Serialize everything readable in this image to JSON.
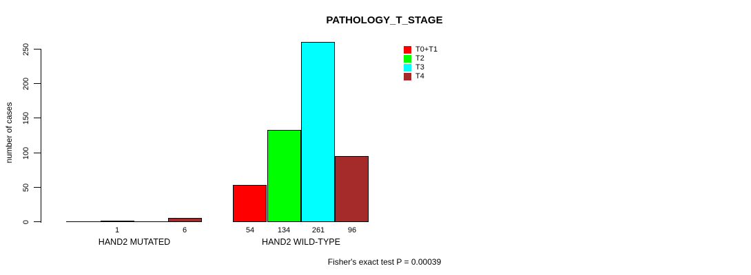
{
  "page": {
    "background": "#FFFFFF",
    "text_color": "#000000",
    "axis_color": "#000000"
  },
  "chart_data": {
    "type": "bar",
    "title": "PATHOLOGY_T_STAGE",
    "xlabel": "",
    "ylabel": "number of cases",
    "categories": [
      "HAND2 MUTATED",
      "HAND2 WILD-TYPE"
    ],
    "series": [
      {
        "name": "T0+T1",
        "color": "#FF0000",
        "values": [
          0,
          54
        ]
      },
      {
        "name": "T2",
        "color": "#00FF00",
        "values": [
          1,
          134
        ]
      },
      {
        "name": "T3",
        "color": "#00FFFF",
        "values": [
          0,
          261
        ]
      },
      {
        "name": "T4",
        "color": "#A52A2A",
        "values": [
          6,
          96
        ]
      }
    ],
    "bar_value_labels_shown": [
      "1",
      "6",
      "54",
      "134",
      "261",
      "96"
    ],
    "yticks": [
      0,
      50,
      100,
      150,
      200,
      250
    ],
    "ylim": [
      0,
      250
    ],
    "grid": false,
    "legend_position": "top-right",
    "legend_entries": [
      "T0+T1",
      "T2",
      "T3",
      "T4"
    ],
    "annotation": "Fisher's exact test P = 0.00039"
  }
}
